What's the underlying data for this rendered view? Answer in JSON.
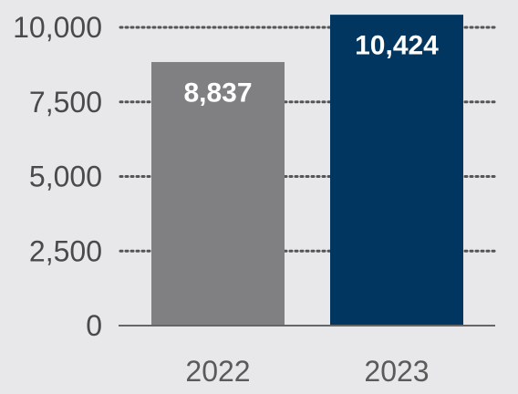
{
  "chart_data": {
    "type": "bar",
    "categories": [
      "2022",
      "2023"
    ],
    "values": [
      8837,
      10424
    ],
    "value_labels": [
      "8,837",
      "10,424"
    ],
    "bar_colors": [
      "#808083",
      "#003660"
    ],
    "yticks": [
      0,
      2500,
      5000,
      7500,
      10000
    ],
    "ytick_labels": [
      "0",
      "2,500",
      "5,000",
      "7,500",
      "10,000"
    ],
    "ylim": [
      0,
      10000
    ],
    "grid": true,
    "title": "",
    "xlabel": "",
    "ylabel": ""
  }
}
